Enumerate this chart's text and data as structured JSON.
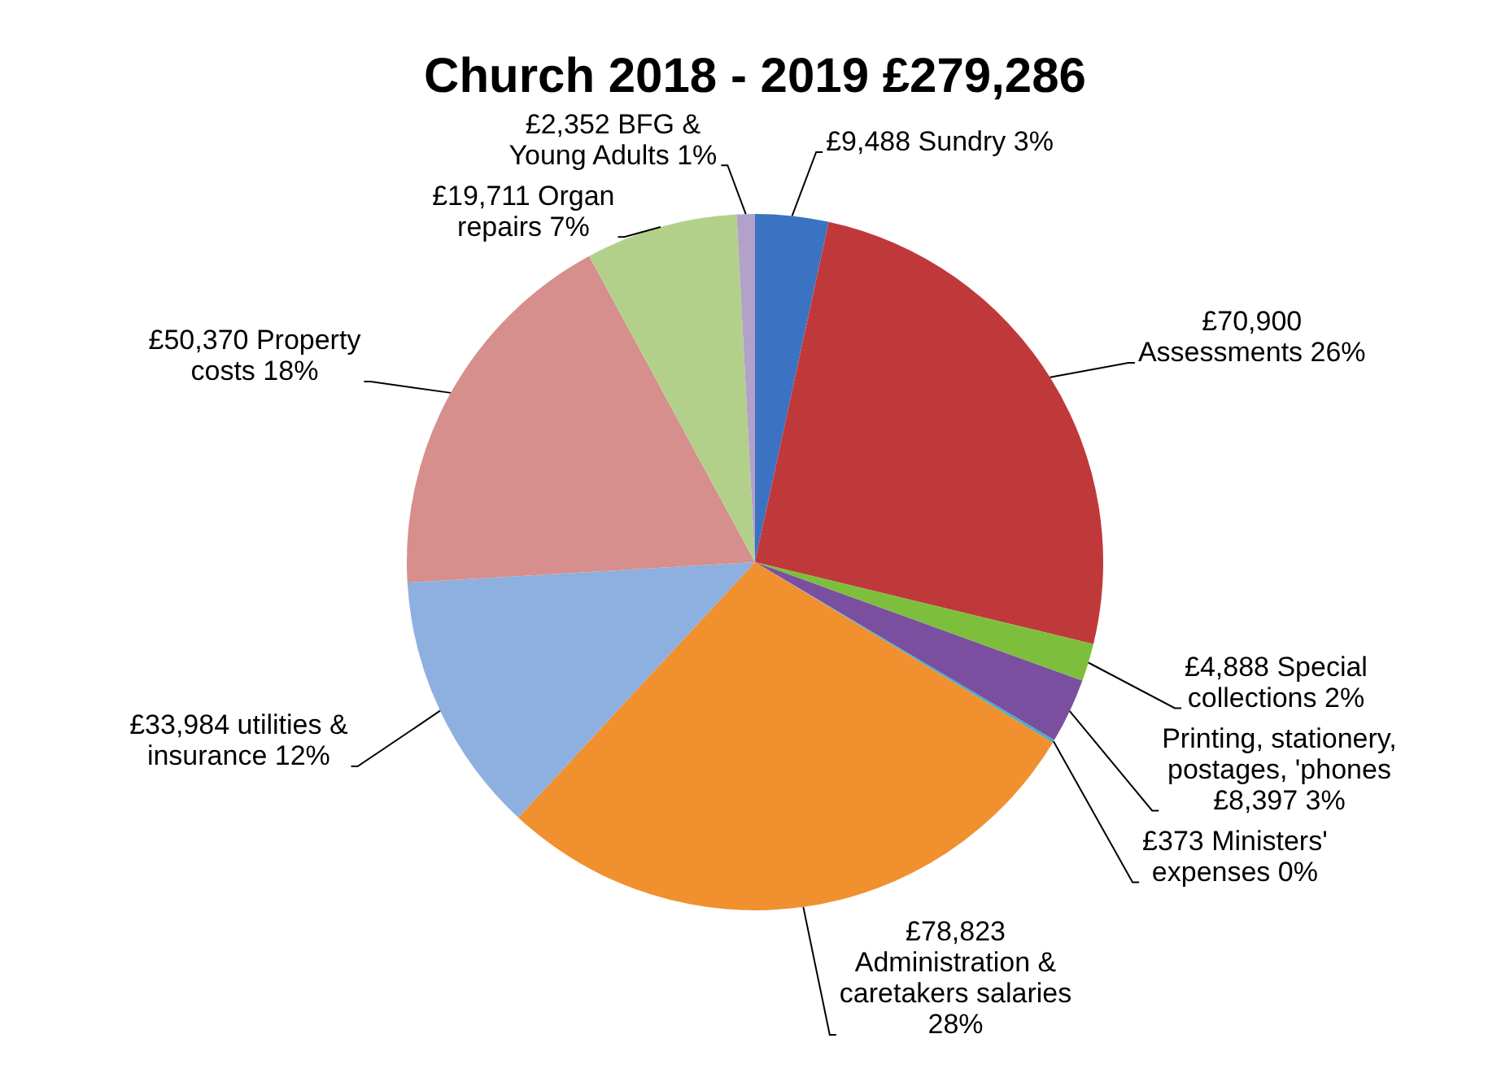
{
  "chart_data": {
    "type": "pie",
    "title": "Church 2018 - 2019 £279,286",
    "categories": [
      "£9,488 Sundry 3%",
      "£70,900 Assessments 26%",
      "£4,888 Special collections 2%",
      "Printing, stationery, postages, 'phones £8,397 3%",
      "£373 Ministers' expenses 0%",
      "£78,823 Administration & caretakers salaries 28%",
      "£33,984 utilities & insurance 12%",
      "£50,370 Property costs 18%",
      "£19,711 Organ repairs 7%",
      "£2,352 BFG & Young Adults 1%"
    ],
    "values": [
      9488,
      70900,
      4888,
      8397,
      373,
      78823,
      33984,
      50370,
      19711,
      2352
    ],
    "colors": [
      "#3b73c2",
      "#c0393a",
      "#7dbf3c",
      "#7b4fa0",
      "#4bacc6",
      "#f0902e",
      "#8db0e0",
      "#d68f8c",
      "#b2d08a",
      "#b2a1c8"
    ],
    "legend": false
  }
}
